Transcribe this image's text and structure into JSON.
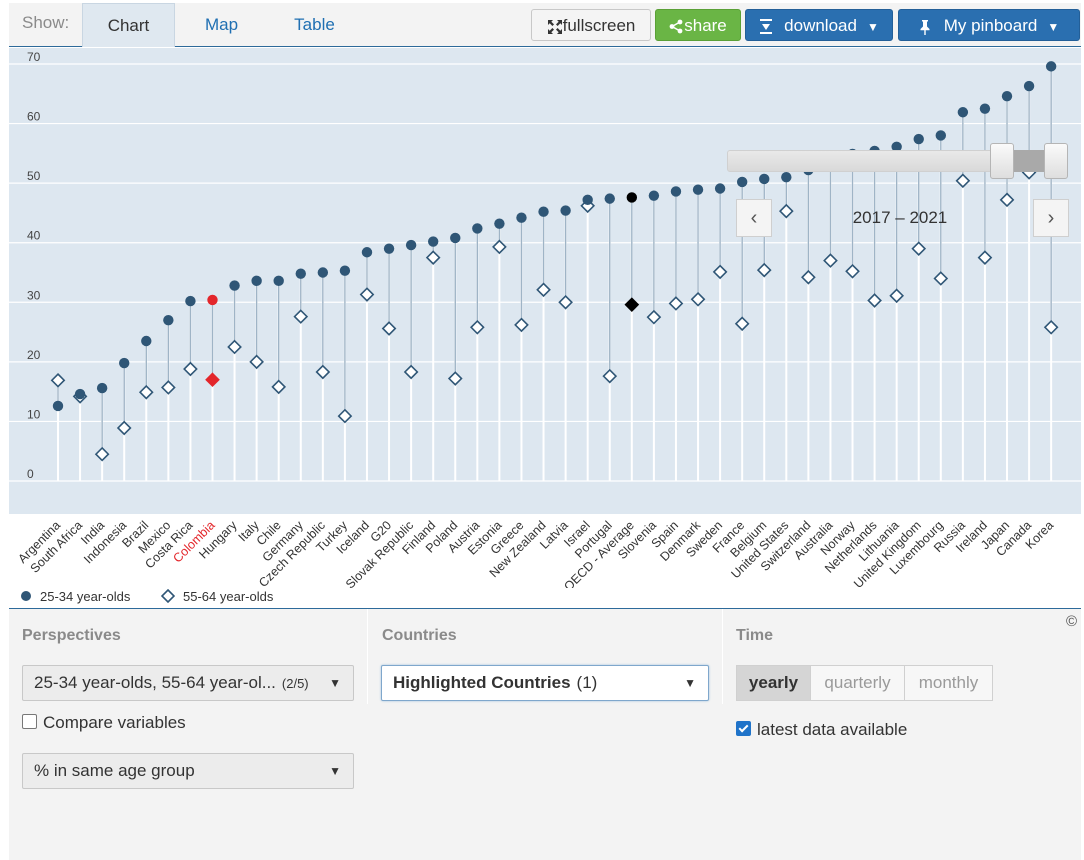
{
  "topbar": {
    "show_label": "Show:",
    "tabs": [
      {
        "label": "Chart",
        "active": true
      },
      {
        "label": "Map",
        "active": false
      },
      {
        "label": "Table",
        "active": false
      }
    ],
    "fullscreen_label": "fullscreen",
    "share_label": "share",
    "download_label": "download",
    "pinboard_label": "My pinboard"
  },
  "chart_data": {
    "type": "scatter",
    "ylim": [
      0,
      70
    ],
    "yticks": [
      0,
      10,
      20,
      30,
      40,
      50,
      60,
      70
    ],
    "grid": true,
    "legend_position": "bottom-left",
    "highlight_color": "#e3262b",
    "average_color": "#000000",
    "series_color": "#2f5676",
    "categories": [
      "Argentina",
      "South Africa",
      "India",
      "Indonesia",
      "Brazil",
      "Mexico",
      "Costa Rica",
      "Colombia",
      "Hungary",
      "Italy",
      "Chile",
      "Germany",
      "Czech Republic",
      "Turkey",
      "Iceland",
      "G20",
      "Slovak Republic",
      "Finland",
      "Poland",
      "Austria",
      "Estonia",
      "Greece",
      "New Zealand",
      "Latvia",
      "Israel",
      "Portugal",
      "OECD - Average",
      "Slovenia",
      "Spain",
      "Denmark",
      "Sweden",
      "France",
      "Belgium",
      "United States",
      "Switzerland",
      "Australia",
      "Norway",
      "Netherlands",
      "Lithuania",
      "United Kingdom",
      "Luxembourg",
      "Russia",
      "Ireland",
      "Japan",
      "Canada",
      "Korea"
    ],
    "highlighted": [
      "Colombia"
    ],
    "average": [
      "OECD - Average"
    ],
    "series": [
      {
        "name": "25-34 year-olds",
        "marker": "circle",
        "values": [
          12.6,
          14.6,
          15.6,
          19.8,
          23.5,
          27.0,
          30.2,
          30.4,
          32.8,
          33.6,
          33.6,
          34.8,
          35.0,
          35.3,
          38.4,
          39.0,
          39.6,
          40.2,
          40.8,
          42.4,
          43.2,
          44.2,
          45.2,
          45.4,
          47.2,
          47.4,
          47.6,
          47.9,
          48.6,
          48.9,
          49.1,
          50.2,
          50.7,
          51.0,
          52.2,
          54.2,
          54.9,
          55.4,
          56.1,
          57.4,
          58.0,
          61.9,
          62.5,
          64.6,
          66.3,
          69.6
        ]
      },
      {
        "name": "55-64 year-olds",
        "marker": "diamond",
        "values": [
          16.9,
          14.2,
          4.5,
          8.9,
          14.9,
          15.7,
          18.8,
          17.0,
          22.5,
          20.0,
          15.8,
          27.6,
          18.3,
          10.9,
          31.3,
          25.6,
          18.3,
          37.5,
          17.2,
          25.8,
          39.3,
          26.2,
          32.1,
          30.0,
          46.2,
          17.6,
          29.6,
          27.5,
          29.8,
          30.5,
          35.1,
          26.4,
          35.4,
          45.3,
          34.2,
          37.0,
          35.2,
          30.3,
          31.1,
          39.0,
          34.0,
          50.4,
          37.5,
          47.2,
          51.8,
          25.8
        ]
      }
    ]
  },
  "controls": {
    "perspectives_title": "Perspectives",
    "perspectives_value": "25-34 year-olds, 55-64 year-ol...",
    "perspectives_count": "(2/5)",
    "compare_label": "Compare variables",
    "unit_value": "% in same age group",
    "countries_title": "Countries",
    "countries_value": "Highlighted Countries",
    "countries_count": "(1)",
    "time_title": "Time",
    "time_options": [
      {
        "label": "yearly",
        "active": true
      },
      {
        "label": "quarterly",
        "active": false
      },
      {
        "label": "monthly",
        "active": false
      }
    ],
    "latest_label": "latest data available",
    "range_label": "2017 – 2021",
    "copyright": "©"
  }
}
